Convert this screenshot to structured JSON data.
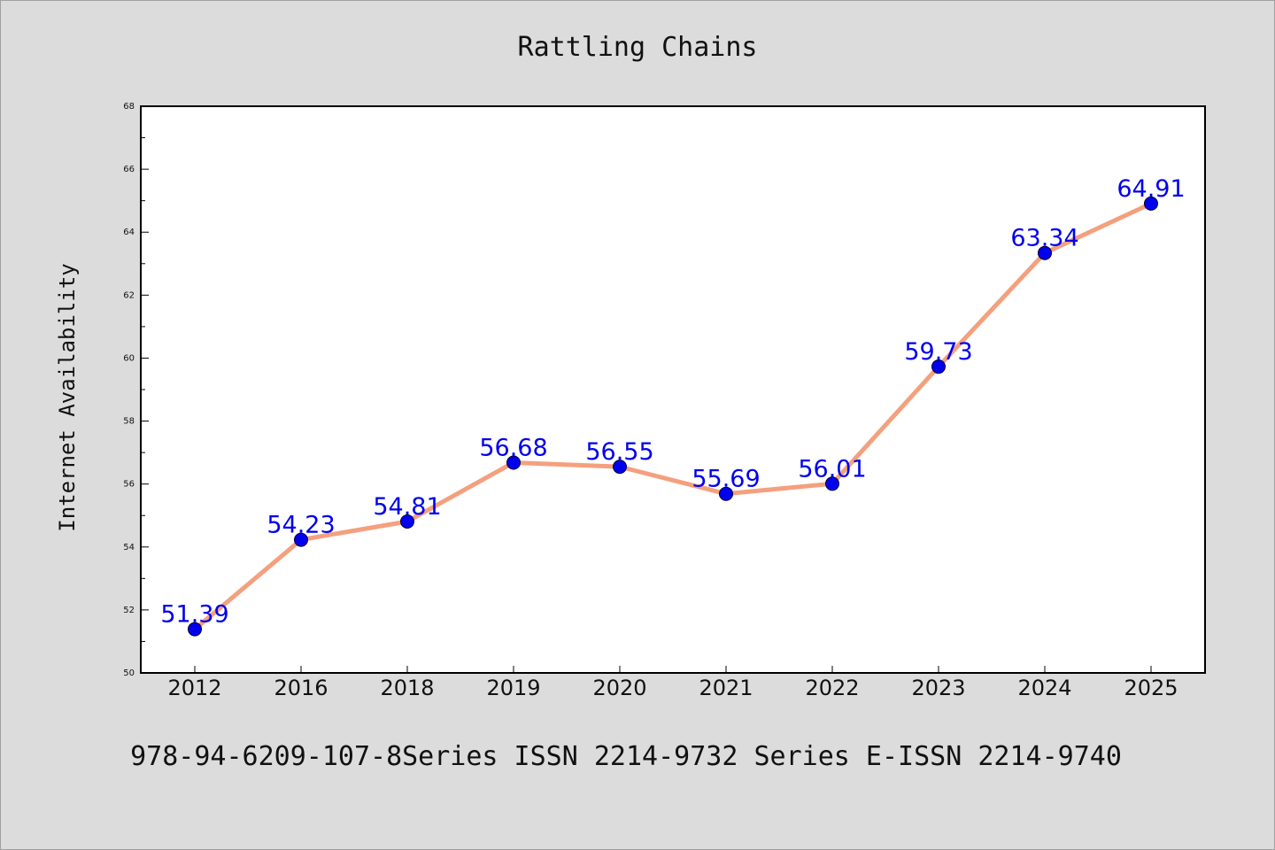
{
  "chart_data": {
    "type": "line",
    "title": "Rattling Chains",
    "xlabel": "",
    "ylabel": "Internet Availability",
    "categories": [
      "2012",
      "2016",
      "2018",
      "2019",
      "2020",
      "2021",
      "2022",
      "2023",
      "2024",
      "2025"
    ],
    "series": [
      {
        "values": [
          51.39,
          54.23,
          54.81,
          56.68,
          56.55,
          55.69,
          56.01,
          59.73,
          63.34,
          64.91
        ],
        "labels": [
          "51.39",
          "54.23",
          "54.81",
          "56.68",
          "56.55",
          "55.69",
          "56.01",
          "59.73",
          "63.34",
          "64.91"
        ],
        "line_color": "#f4a07e",
        "marker_color": "#0000ee"
      }
    ],
    "ylim": [
      50,
      68
    ],
    "yticks": [
      "50",
      "52",
      "54",
      "56",
      "58",
      "60",
      "62",
      "64",
      "66",
      "68"
    ],
    "grid": false,
    "label_color": "#0000ee"
  },
  "footer": {
    "text": "978-94-6209-107-8Series ISSN 2214-9732 Series E-ISSN 2214-9740"
  }
}
